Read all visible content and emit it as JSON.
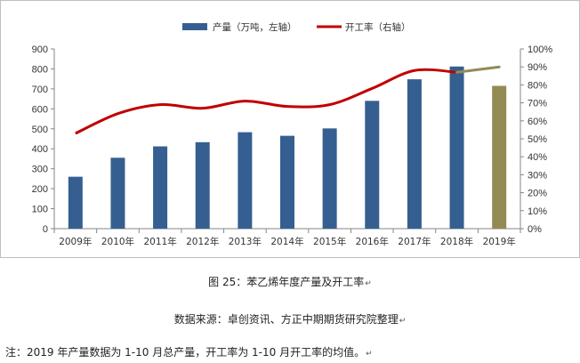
{
  "chart_data": {
    "type": "bar+line",
    "categories": [
      "2009年",
      "2010年",
      "2011年",
      "2012年",
      "2013年",
      "2014年",
      "2015年",
      "2016年",
      "2017年",
      "2018年",
      "2019年"
    ],
    "series": [
      {
        "name": "产量（万吨，左轴）",
        "type": "bar",
        "axis": "left",
        "values": [
          260,
          355,
          412,
          433,
          483,
          465,
          502,
          640,
          748,
          812,
          715
        ],
        "color": "#365F91",
        "highlight_color": "#948A54",
        "highlight_index": 10
      },
      {
        "name": "开工率（右轴）",
        "type": "line",
        "axis": "right",
        "values": [
          53,
          64,
          69,
          67,
          71,
          68,
          69,
          78,
          88,
          87,
          90
        ],
        "color": "#C00000",
        "extension_color": "#948A54",
        "extension_from_index": 9
      }
    ],
    "y_left": {
      "range": [
        0,
        900
      ],
      "ticks": [
        "0",
        "100",
        "200",
        "300",
        "400",
        "500",
        "600",
        "700",
        "800",
        "900"
      ]
    },
    "y_right": {
      "range": [
        0,
        100
      ],
      "ticks": [
        "0%",
        "10%",
        "20%",
        "30%",
        "40%",
        "50%",
        "60%",
        "70%",
        "80%",
        "90%",
        "100%"
      ]
    },
    "grid": false,
    "legend_position": "top-center"
  },
  "caption": {
    "title": "图 25：苯乙烯年度产量及开工率",
    "source": "数据来源：卓创资讯、方正中期期货研究院整理",
    "note": "注：2019 年产量数据为 1-10 月总产量，开工率为 1-10 月开工率的均值。"
  }
}
